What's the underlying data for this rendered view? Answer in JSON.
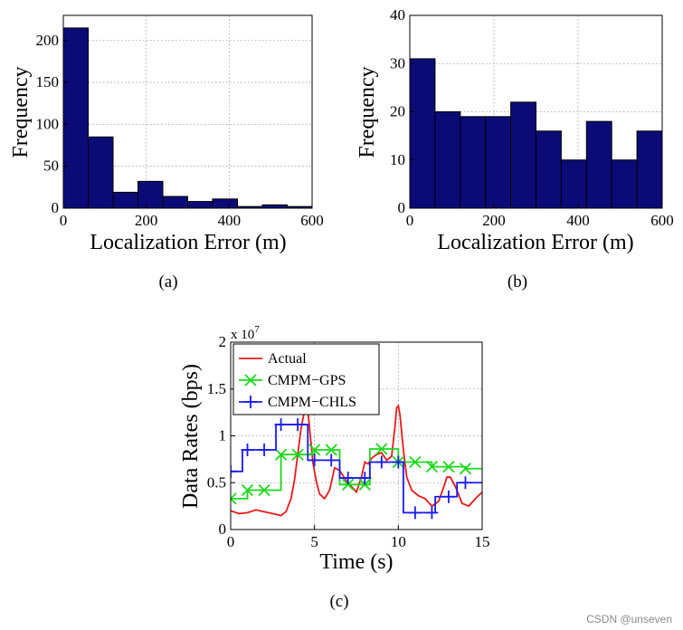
{
  "chart_data": [
    {
      "id": "a",
      "type": "bar",
      "caption": "(a)",
      "xlabel": "Localization Error (m)",
      "ylabel": "Frequency",
      "xlim": [
        0,
        600
      ],
      "ylim": [
        0,
        230
      ],
      "xticks": [
        0,
        200,
        400,
        600
      ],
      "yticks": [
        0,
        50,
        100,
        150,
        200
      ],
      "bin_width": 60,
      "bins": [
        {
          "start": 0,
          "value": 215
        },
        {
          "start": 60,
          "value": 85
        },
        {
          "start": 120,
          "value": 19
        },
        {
          "start": 180,
          "value": 32
        },
        {
          "start": 240,
          "value": 14
        },
        {
          "start": 300,
          "value": 8
        },
        {
          "start": 360,
          "value": 11
        },
        {
          "start": 420,
          "value": 2
        },
        {
          "start": 480,
          "value": 4
        },
        {
          "start": 540,
          "value": 2
        }
      ],
      "grid": true
    },
    {
      "id": "b",
      "type": "bar",
      "caption": "(b)",
      "xlabel": "Localization Error (m)",
      "ylabel": "Frequency",
      "xlim": [
        0,
        600
      ],
      "ylim": [
        0,
        40
      ],
      "xticks": [
        0,
        200,
        400,
        600
      ],
      "yticks": [
        0,
        10,
        20,
        30,
        40
      ],
      "bin_width": 60,
      "bins": [
        {
          "start": 0,
          "value": 31
        },
        {
          "start": 60,
          "value": 20
        },
        {
          "start": 120,
          "value": 19
        },
        {
          "start": 180,
          "value": 19
        },
        {
          "start": 240,
          "value": 22
        },
        {
          "start": 300,
          "value": 16
        },
        {
          "start": 360,
          "value": 10
        },
        {
          "start": 420,
          "value": 18
        },
        {
          "start": 480,
          "value": 10
        },
        {
          "start": 540,
          "value": 16
        }
      ],
      "grid": true
    },
    {
      "id": "c",
      "type": "line",
      "caption": "(c)",
      "xlabel": "Time (s)",
      "ylabel": "Data Rates (bps)",
      "exponent_label": "x 10",
      "exponent_value": "7",
      "xlim": [
        0,
        15
      ],
      "ylim": [
        0,
        2
      ],
      "xticks": [
        0,
        5,
        10,
        15
      ],
      "yticks": [
        0,
        0.5,
        1,
        1.5,
        2
      ],
      "ytick_labels": [
        "0",
        "0.5",
        "1",
        "1.5",
        "2"
      ],
      "legend_position": "top-left",
      "grid": true,
      "series": [
        {
          "name": "Actual",
          "color": "#e8191b",
          "marker": "none",
          "x": [
            0,
            0.5,
            1,
            1.5,
            2,
            2.5,
            3,
            3.3,
            3.6,
            3.8,
            4.0,
            4.2,
            4.35,
            4.5,
            4.6,
            4.75,
            4.9,
            5.1,
            5.3,
            5.6,
            5.9,
            6.2,
            6.5,
            6.9,
            7.2,
            7.5,
            7.8,
            8.0,
            8.2,
            8.4,
            8.7,
            9.0,
            9.3,
            9.6,
            9.8,
            9.9,
            10.0,
            10.1,
            10.3,
            10.5,
            10.8,
            11.2,
            11.6,
            12.0,
            12.4,
            12.7,
            12.9,
            13.1,
            13.4,
            13.8,
            14.2,
            14.6,
            15
          ],
          "y": [
            0.2,
            0.17,
            0.18,
            0.21,
            0.19,
            0.17,
            0.15,
            0.19,
            0.33,
            0.52,
            0.8,
            1.08,
            1.22,
            1.33,
            1.28,
            1.0,
            0.72,
            0.52,
            0.38,
            0.33,
            0.42,
            0.66,
            0.63,
            0.52,
            0.46,
            0.4,
            0.56,
            0.72,
            0.7,
            0.76,
            0.8,
            0.82,
            0.74,
            0.78,
            1.1,
            1.3,
            1.32,
            1.22,
            0.85,
            0.56,
            0.42,
            0.36,
            0.33,
            0.25,
            0.3,
            0.45,
            0.56,
            0.56,
            0.46,
            0.28,
            0.25,
            0.33,
            0.4
          ]
        },
        {
          "name": "CMPM−GPS",
          "color": "#1ad81a",
          "marker": "x",
          "steps": [
            {
              "x": 0,
              "y": 0.33
            },
            {
              "x": 1,
              "y": 0.42
            },
            {
              "x": 2,
              "y": 0.42
            },
            {
              "x": 3,
              "y": 0.8
            },
            {
              "x": 4,
              "y": 0.8
            },
            {
              "x": 5,
              "y": 0.85
            },
            {
              "x": 6,
              "y": 0.85
            },
            {
              "x": 6.5,
              "y": 0.48
            },
            {
              "x": 8,
              "y": 0.48
            },
            {
              "x": 8.3,
              "y": 0.86
            },
            {
              "x": 10,
              "y": 0.72
            },
            {
              "x": 11,
              "y": 0.72
            },
            {
              "x": 12,
              "y": 0.67
            },
            {
              "x": 13,
              "y": 0.67
            },
            {
              "x": 14,
              "y": 0.65
            }
          ],
          "end_x": 15,
          "marker_x": [
            0,
            1,
            2,
            3,
            4,
            5,
            6,
            7,
            8,
            9,
            10,
            11,
            12,
            13,
            14
          ]
        },
        {
          "name": "CMPM−CHLS",
          "color": "#1a1af0",
          "marker": "+",
          "steps": [
            {
              "x": 0,
              "y": 0.62
            },
            {
              "x": 0.7,
              "y": 0.85
            },
            {
              "x": 2.7,
              "y": 1.12
            },
            {
              "x": 4.6,
              "y": 0.74
            },
            {
              "x": 6.5,
              "y": 0.55
            },
            {
              "x": 8.3,
              "y": 0.72
            },
            {
              "x": 10.3,
              "y": 0.18
            },
            {
              "x": 12.2,
              "y": 0.35
            },
            {
              "x": 13.5,
              "y": 0.5
            }
          ],
          "end_x": 15,
          "marker_x": [
            0,
            1,
            2,
            3,
            4,
            5,
            6,
            7,
            8,
            9,
            10,
            11,
            12,
            13,
            14
          ]
        }
      ]
    }
  ],
  "watermark": "CSDN @unseven"
}
